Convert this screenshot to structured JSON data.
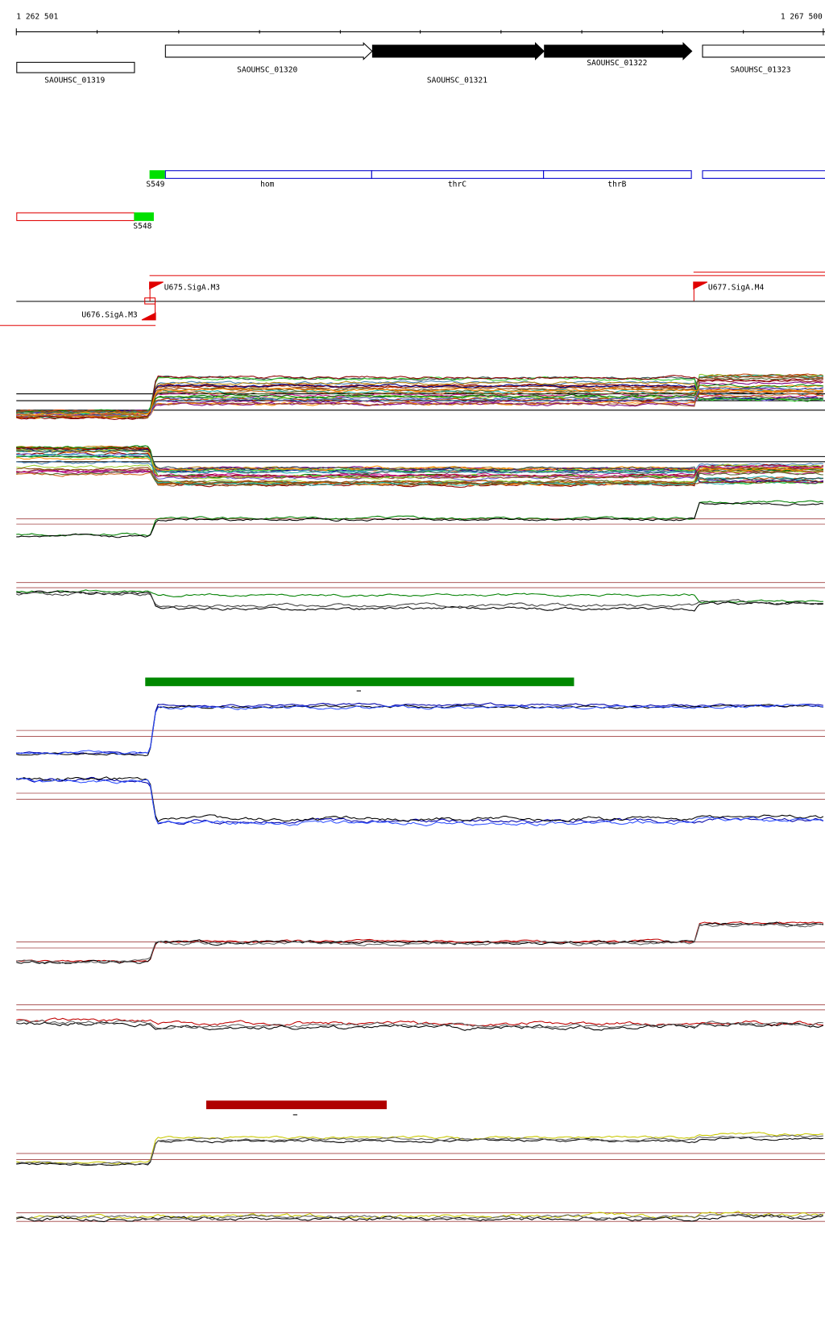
{
  "ruler": {
    "start": "1 262 501",
    "end": "1 267 500"
  },
  "genes": [
    {
      "label": "SAOUHSC_01319"
    },
    {
      "label": "SAOUHSC_01320"
    },
    {
      "label": "SAOUHSC_01321"
    },
    {
      "label": "SAOUHSC_01322"
    },
    {
      "label": "SAOUHSC_01323"
    }
  ],
  "operon": [
    "S549",
    "hom",
    "thrC",
    "thrB",
    "S548"
  ],
  "promoters": [
    "U675.SigA.M3",
    "U677.SigA.M4",
    "U676.SigA.M3"
  ]
}
